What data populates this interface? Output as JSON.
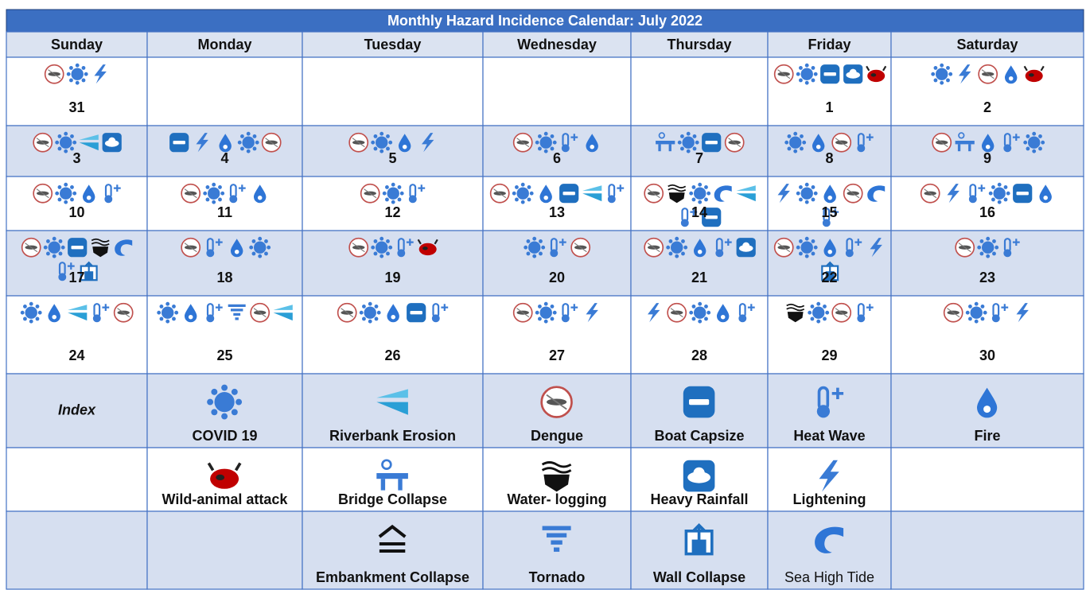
{
  "title": "Monthly Hazard Incidence Calendar: July 2022",
  "weekdays": [
    "Sunday",
    "Monday",
    "Tuesday",
    "Wednesday",
    "Thursday",
    "Friday",
    "Saturday"
  ],
  "weeks": [
    [
      31,
      null,
      null,
      null,
      null,
      1,
      2
    ],
    [
      3,
      4,
      5,
      6,
      7,
      8,
      9
    ],
    [
      10,
      11,
      12,
      13,
      14,
      15,
      16
    ],
    [
      17,
      18,
      19,
      20,
      21,
      22,
      23
    ],
    [
      24,
      25,
      26,
      27,
      28,
      29,
      30
    ]
  ],
  "index": {
    "heading": "Index",
    "rows": [
      [
        "COVID 19",
        "Riverbank Erosion",
        "Dengue",
        "Boat Capsize",
        "Heat Wave",
        "Fire"
      ],
      [
        "Wild-animal attack",
        "Bridge Collapse",
        "Water- logging",
        "Heavy Rainfall",
        "Lightening"
      ],
      [
        "Embankment Collapse",
        "Tornado",
        "Wall Collapse",
        "Sea High Tide"
      ]
    ]
  }
}
